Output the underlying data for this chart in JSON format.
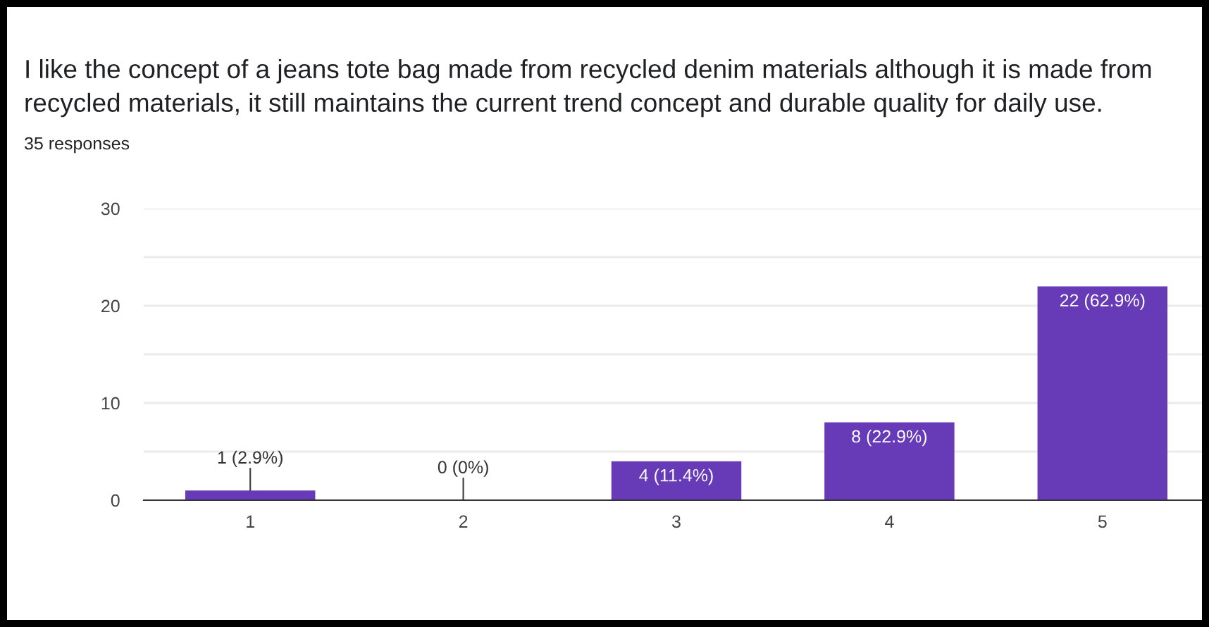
{
  "chart_data": {
    "type": "bar",
    "title": "I like the concept of a jeans tote bag made from recycled denim materials although it is made from recycled materials, it still maintains the current trend concept and durable quality for daily use.",
    "subtitle": "35 responses",
    "categories": [
      "1",
      "2",
      "3",
      "4",
      "5"
    ],
    "values": [
      1,
      0,
      4,
      8,
      22
    ],
    "value_labels": [
      "1 (2.9%)",
      "0 (0%)",
      "4 (11.4%)",
      "8 (22.9%)",
      "22 (62.9%)"
    ],
    "color": "#673ab7",
    "ylim": [
      0,
      30
    ],
    "yticks": [
      0,
      {
        "value": 5,
        "label": null
      },
      10,
      {
        "value": 15,
        "label": null
      },
      20,
      {
        "value": 25,
        "label": null
      },
      30
    ],
    "grid": "y",
    "legend": false
  }
}
